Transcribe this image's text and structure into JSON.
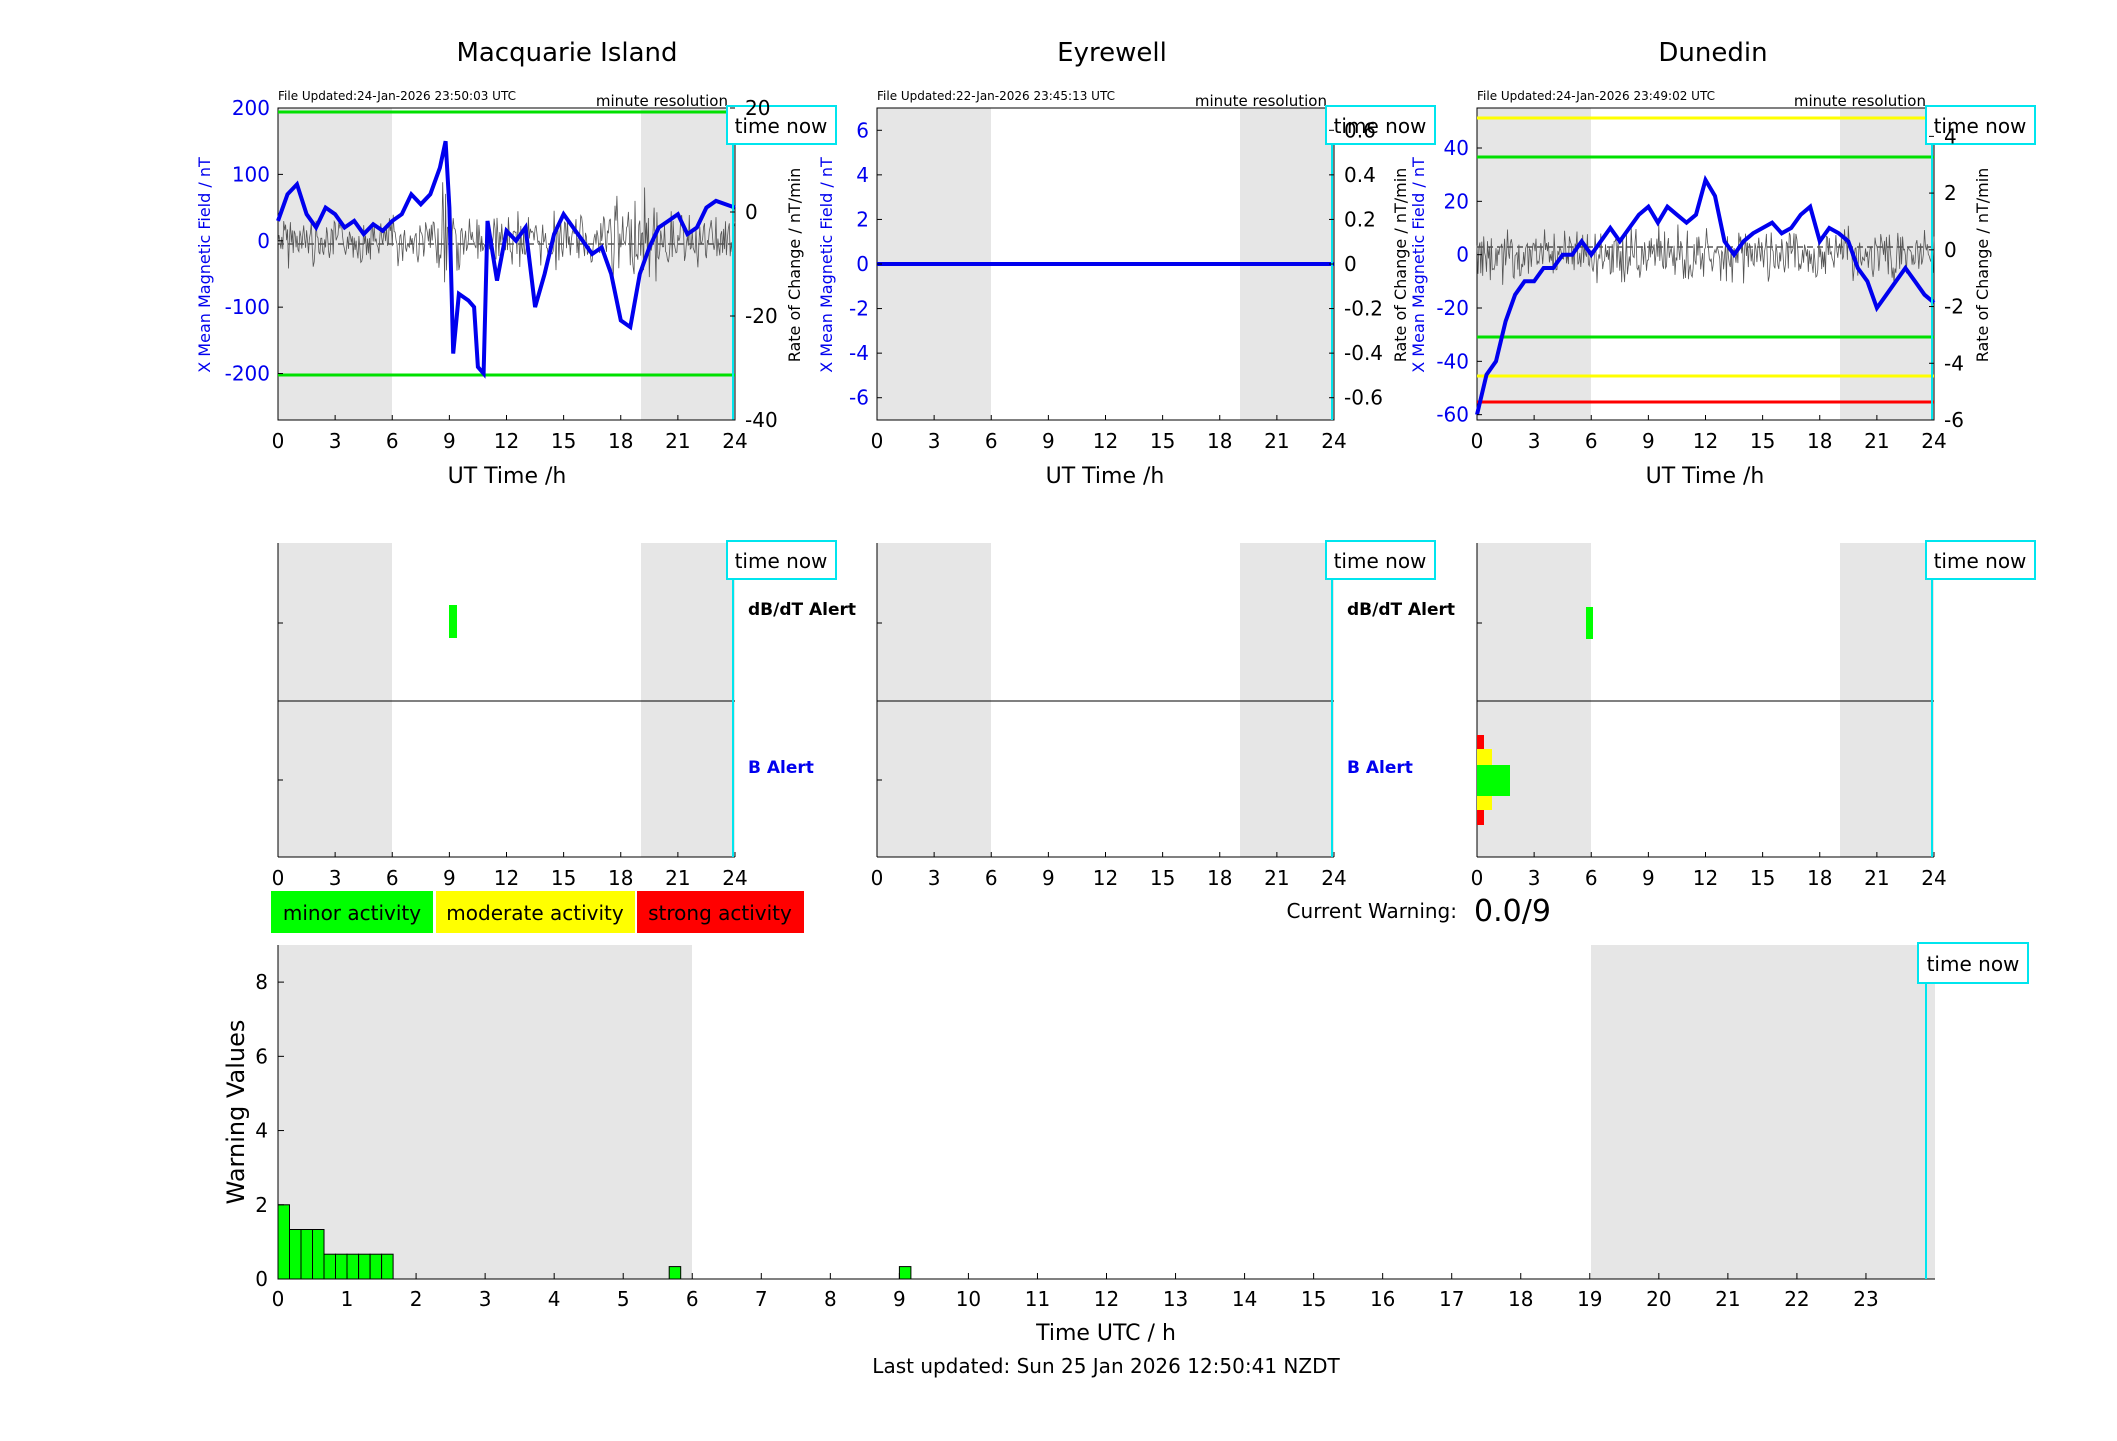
{
  "stations": [
    {
      "name": "Macquarie Island",
      "file_updated": "File Updated:24-Jan-2026 23:50:03 UTC",
      "resolution": "minute resolution",
      "left_label": "X Mean Magnetic Field / nT",
      "right_label": "Rate of Change / nT/min",
      "xlabel": "UT Time /h",
      "left_ticks": [
        "200",
        "100",
        "0",
        "-100",
        "-200"
      ],
      "right_ticks": [
        "20",
        "0",
        "-20",
        "-40"
      ]
    },
    {
      "name": "Eyrewell",
      "file_updated": "File Updated:22-Jan-2026 23:45:13 UTC",
      "resolution": "minute resolution",
      "left_label": "X Mean Magnetic Field / nT",
      "right_label": "",
      "xlabel": "UT Time /h",
      "left_ticks": [
        "6",
        "4",
        "2",
        "0",
        "-2",
        "-4",
        "-6"
      ],
      "right_ticks": [
        "0.6",
        "0.4",
        "0.2",
        "0",
        "-0.2",
        "-0.4",
        "-0.6"
      ]
    },
    {
      "name": "Dunedin",
      "file_updated": "File Updated:24-Jan-2026 23:49:02 UTC",
      "resolution": "minute resolution",
      "left_label": "X Mean Magnetic Field / nT",
      "left_label2": "Rate of Change / nT/min",
      "right_label": "Rate of Change / nT/min",
      "xlabel": "UT Time /h",
      "left_ticks": [
        "40",
        "20",
        "0",
        "-20",
        "-40",
        "-60"
      ],
      "right_ticks": [
        "4",
        "2",
        "0",
        "-2",
        "-4",
        "-6"
      ]
    }
  ],
  "time_now_label": "time now",
  "hour_ticks": [
    "0",
    "3",
    "6",
    "9",
    "12",
    "15",
    "18",
    "21",
    "24"
  ],
  "alerts": {
    "dbdt_label": "dB/dT Alert",
    "b_label": "B Alert"
  },
  "legend": {
    "minor": "minor activity",
    "moderate": "moderate activity",
    "strong": "strong activity"
  },
  "current_warning": {
    "label": "Current Warning:",
    "value": "0.0/9"
  },
  "colors": {
    "minor": "#00ff00",
    "moderate": "#ffff00",
    "strong": "#ff0000",
    "field": "#0000ee",
    "time_now": "#00e5ee",
    "night_shade": "#e6e6e6"
  },
  "chart_data": [
    {
      "type": "line",
      "title": "Macquarie Island",
      "xlabel": "UT Time /h",
      "ylabel": "X Mean Magnetic Field / nT",
      "y2label": "Rate of Change / nT/min",
      "xlim": [
        0,
        24
      ],
      "ylim": [
        -270,
        200
      ],
      "y2lim": [
        -40,
        20
      ],
      "threshold_lines": [
        {
          "value": 200,
          "color": "green"
        },
        {
          "value": -200,
          "color": "green"
        }
      ],
      "series": [
        {
          "x": [
            0,
            0.5,
            1,
            1.5,
            2,
            2.5,
            3,
            3.5,
            4,
            4.5,
            5,
            5.5,
            6,
            6.5,
            7,
            7.5,
            8,
            8.5,
            8.8,
            9,
            9.2,
            9.5,
            10,
            10.3,
            10.5,
            10.8,
            11,
            11.5,
            12,
            12.5,
            13,
            13.5,
            14,
            14.5,
            15,
            15.5,
            16,
            16.5,
            17,
            17.5,
            18,
            18.5,
            19,
            19.5,
            20,
            20.5,
            21,
            21.5,
            22,
            22.5,
            23,
            23.5,
            24
          ],
          "values": [
            30,
            70,
            85,
            40,
            20,
            50,
            40,
            20,
            30,
            10,
            25,
            15,
            30,
            40,
            70,
            55,
            70,
            110,
            150,
            50,
            -170,
            -80,
            -90,
            -100,
            -190,
            -200,
            30,
            -60,
            15,
            0,
            20,
            -100,
            -50,
            10,
            40,
            20,
            0,
            -20,
            -10,
            -50,
            -120,
            -130,
            -50,
            -10,
            20,
            30,
            40,
            10,
            20,
            50,
            60,
            55,
            50
          ]
        }
      ]
    },
    {
      "type": "line",
      "title": "Eyrewell",
      "xlabel": "UT Time /h",
      "ylabel": "X Mean Magnetic Field / nT",
      "xlim": [
        0,
        24
      ],
      "ylim": [
        -7,
        7
      ],
      "y2lim": [
        -0.7,
        0.7
      ],
      "series": [
        {
          "x": [
            0,
            24
          ],
          "values": [
            0,
            0
          ]
        }
      ]
    },
    {
      "type": "line",
      "title": "Dunedin",
      "xlabel": "UT Time /h",
      "ylabel": "X Mean Magnetic Field / nT",
      "y2label": "Rate of Change / nT/min",
      "xlim": [
        0,
        24
      ],
      "ylim": [
        -62,
        55
      ],
      "y2lim": [
        -6,
        5
      ],
      "threshold_lines": [
        {
          "value": 50,
          "color": "yellow"
        },
        {
          "value": 35,
          "color": "green"
        },
        {
          "value": -35,
          "color": "green"
        },
        {
          "value": -50,
          "color": "yellow"
        },
        {
          "value": -60,
          "color": "red"
        }
      ],
      "series": [
        {
          "x": [
            0,
            0.5,
            1,
            1.5,
            2,
            2.5,
            3,
            3.5,
            4,
            4.5,
            5,
            5.5,
            6,
            6.5,
            7,
            7.5,
            8,
            8.5,
            9,
            9.5,
            10,
            10.5,
            11,
            11.5,
            12,
            12.5,
            13,
            13.5,
            14,
            14.5,
            15,
            15.5,
            16,
            16.5,
            17,
            17.5,
            18,
            18.5,
            19,
            19.5,
            20,
            20.5,
            21,
            21.5,
            22,
            22.5,
            23,
            23.5,
            24
          ],
          "values": [
            -60,
            -45,
            -40,
            -25,
            -15,
            -10,
            -10,
            -5,
            -5,
            0,
            0,
            5,
            0,
            5,
            10,
            5,
            10,
            15,
            18,
            12,
            18,
            15,
            12,
            15,
            28,
            22,
            5,
            0,
            5,
            8,
            10,
            12,
            8,
            10,
            15,
            18,
            5,
            10,
            8,
            5,
            -5,
            -10,
            -20,
            -15,
            -10,
            -5,
            -10,
            -15,
            -18
          ]
        }
      ]
    },
    {
      "type": "bar",
      "title": "",
      "xlabel": "Time UTC / h",
      "ylabel": "Warning Values",
      "xlim": [
        0,
        24
      ],
      "ylim": [
        0,
        9
      ],
      "x_ticks": [
        "0",
        "1",
        "2",
        "3",
        "4",
        "5",
        "6",
        "7",
        "8",
        "9",
        "10",
        "11",
        "12",
        "13",
        "14",
        "15",
        "16",
        "17",
        "18",
        "19",
        "20",
        "21",
        "22",
        "23"
      ],
      "y_ticks": [
        "0",
        "2",
        "4",
        "6",
        "8"
      ],
      "bars": [
        {
          "x": 0.0,
          "value": 2
        },
        {
          "x": 0.1667,
          "value": 1.333
        },
        {
          "x": 0.3333,
          "value": 1.333
        },
        {
          "x": 0.5,
          "value": 1.333
        },
        {
          "x": 0.6667,
          "value": 0.667
        },
        {
          "x": 0.8333,
          "value": 0.667
        },
        {
          "x": 1.0,
          "value": 0.667
        },
        {
          "x": 1.1667,
          "value": 0.667
        },
        {
          "x": 1.3333,
          "value": 0.667
        },
        {
          "x": 1.5,
          "value": 0.667
        },
        {
          "x": 5.6667,
          "value": 0.333
        },
        {
          "x": 9.0,
          "value": 0.333
        }
      ],
      "footer": "Last updated: Sun 25 Jan 2026 12:50:41 NZDT"
    }
  ]
}
